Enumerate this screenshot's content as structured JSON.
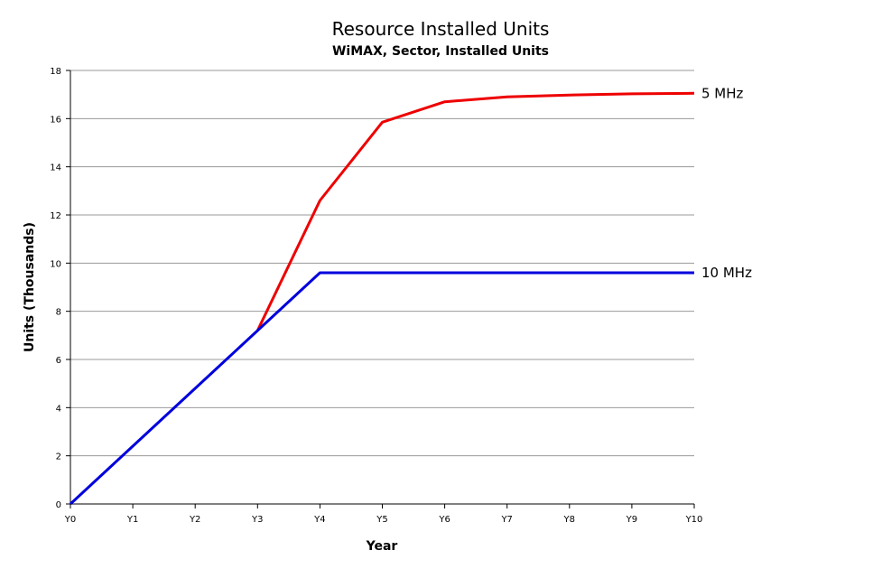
{
  "chart_data": {
    "type": "line",
    "title": "Resource Installed Units",
    "subtitle": "WiMAX, Sector, Installed Units",
    "xlabel": "Year",
    "ylabel": "Units  (Thousands)",
    "categories": [
      "Y0",
      "Y1",
      "Y2",
      "Y3",
      "Y4",
      "Y5",
      "Y6",
      "Y7",
      "Y8",
      "Y9",
      "Y10"
    ],
    "ylim": [
      0,
      18
    ],
    "yticks": [
      "0",
      "2",
      "4",
      "6",
      "8",
      "10",
      "12",
      "14",
      "16",
      "18"
    ],
    "grid": true,
    "legend": "series labels at right end of lines",
    "series": [
      {
        "name": "5 MHz",
        "color": "#ee0000",
        "values": [
          null,
          null,
          null,
          7.2,
          12.6,
          15.85,
          16.7,
          16.9,
          16.98,
          17.03,
          17.05
        ]
      },
      {
        "name": "10 MHz",
        "color": "#0000dd",
        "values": [
          0,
          2.4,
          4.8,
          7.2,
          9.6,
          9.6,
          9.6,
          9.6,
          9.6,
          9.6,
          9.6
        ]
      }
    ]
  }
}
